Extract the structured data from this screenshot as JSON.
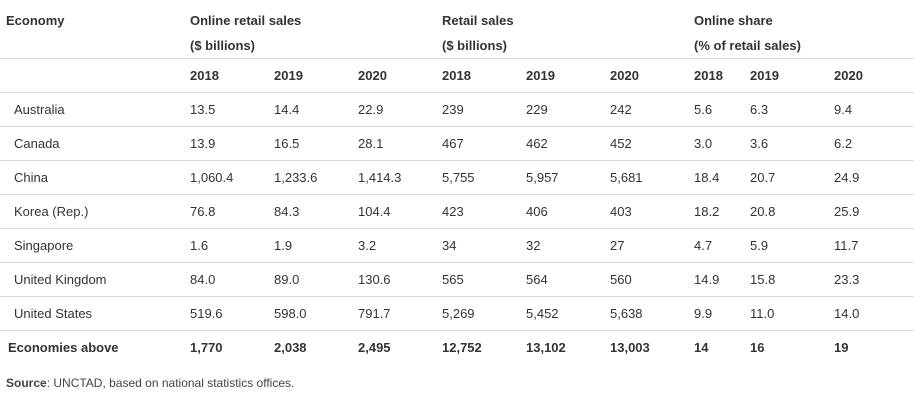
{
  "header": {
    "economy_label": "Economy",
    "groups": [
      {
        "title": "Online retail sales",
        "unit": "($ billions)"
      },
      {
        "title": "Retail sales",
        "unit": "($ billions)"
      },
      {
        "title": "Online share",
        "unit": "(% of retail sales)"
      }
    ],
    "years": [
      "2018",
      "2019",
      "2020",
      "2018",
      "2019",
      "2020",
      "2018",
      "2019",
      "2020"
    ]
  },
  "rows": [
    {
      "economy": "Australia",
      "values": [
        "13.5",
        "14.4",
        "22.9",
        "239",
        "229",
        "242",
        "5.6",
        "6.3",
        "9.4"
      ]
    },
    {
      "economy": "Canada",
      "values": [
        "13.9",
        "16.5",
        "28.1",
        "467",
        "462",
        "452",
        "3.0",
        "3.6",
        "6.2"
      ]
    },
    {
      "economy": "China",
      "values": [
        "1,060.4",
        "1,233.6",
        "1,414.3",
        "5,755",
        "5,957",
        "5,681",
        "18.4",
        "20.7",
        "24.9"
      ]
    },
    {
      "economy": "Korea (Rep.)",
      "values": [
        "76.8",
        "84.3",
        "104.4",
        "423",
        "406",
        "403",
        "18.2",
        "20.8",
        "25.9"
      ]
    },
    {
      "economy": "Singapore",
      "values": [
        "1.6",
        "1.9",
        "3.2",
        "34",
        "32",
        "27",
        "4.7",
        "5.9",
        "11.7"
      ]
    },
    {
      "economy": "United Kingdom",
      "values": [
        "84.0",
        "89.0",
        "130.6",
        "565",
        "564",
        "560",
        "14.9",
        "15.8",
        "23.3"
      ]
    },
    {
      "economy": "United States",
      "values": [
        "519.6",
        "598.0",
        "791.7",
        "5,269",
        "5,452",
        "5,638",
        "9.9",
        "11.0",
        "14.0"
      ]
    }
  ],
  "total": {
    "economy": "Economies above",
    "values": [
      "1,770",
      "2,038",
      "2,495",
      "12,752",
      "13,102",
      "13,003",
      "14",
      "16",
      "19"
    ]
  },
  "source": {
    "label": "Source",
    "text": ": UNCTAD, based on national statistics offices."
  }
}
